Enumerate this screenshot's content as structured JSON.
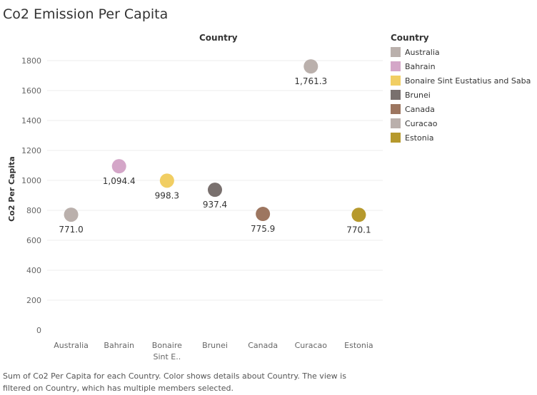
{
  "chart_data": {
    "type": "scatter",
    "title": "Co2 Emission Per Capita",
    "column_header": "Country",
    "ylabel": "Co2 Per Capita",
    "xlabel": "",
    "ylim": [
      0,
      1800
    ],
    "yticks": [
      0,
      200,
      400,
      600,
      800,
      1000,
      1200,
      1400,
      1600,
      1800
    ],
    "ytick_labels": [
      "0",
      "200",
      "400",
      "600",
      "800",
      "1000",
      "1200",
      "1400",
      "1600",
      "1800"
    ],
    "categories": [
      "Australia",
      "Bahrain",
      "Bonaire Sint Eustatius and Saba",
      "Brunei",
      "Canada",
      "Curacao",
      "Estonia"
    ],
    "category_labels": [
      [
        "Australia"
      ],
      [
        "Bahrain"
      ],
      [
        "Bonaire",
        "Sint E.."
      ],
      [
        "Brunei"
      ],
      [
        "Canada"
      ],
      [
        "Curacao"
      ],
      [
        "Estonia"
      ]
    ],
    "values": [
      771.0,
      1094.4,
      998.3,
      937.4,
      775.9,
      1761.3,
      770.1
    ],
    "data_labels": [
      "771.0",
      "1,094.4",
      "998.3",
      "937.4",
      "775.9",
      "1,761.3",
      "770.1"
    ],
    "colors": [
      "#bab0ac",
      "#d4a6c8",
      "#f1ce63",
      "#79706e",
      "#9d7660",
      "#bab0ac",
      "#b6992d"
    ],
    "grid": true,
    "legend_position": "right",
    "legend_title": "Country",
    "legend": [
      {
        "label": "Australia",
        "color": "#bab0ac"
      },
      {
        "label": "Bahrain",
        "color": "#d4a6c8"
      },
      {
        "label": "Bonaire Sint Eustatius and Saba",
        "color": "#f1ce63"
      },
      {
        "label": "Brunei",
        "color": "#79706e"
      },
      {
        "label": "Canada",
        "color": "#9d7660"
      },
      {
        "label": "Curacao",
        "color": "#bab0ac"
      },
      {
        "label": "Estonia",
        "color": "#b6992d"
      }
    ]
  },
  "footer": {
    "line1": "Sum of Co2 Per Capita for each Country.  Color shows details about Country. The view is",
    "line2": "filtered on Country, which has multiple members selected."
  }
}
